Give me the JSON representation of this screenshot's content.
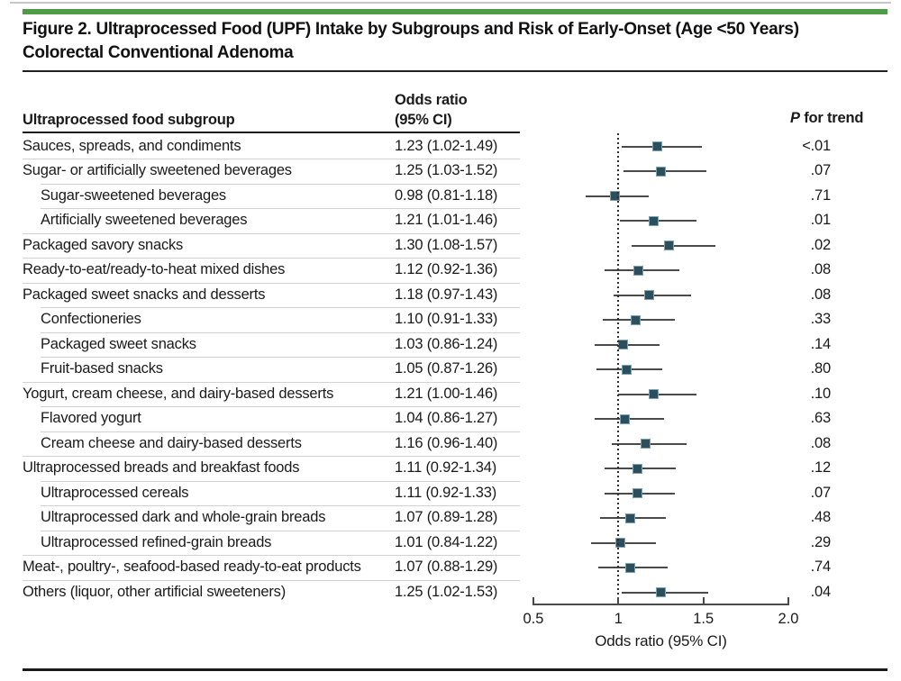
{
  "figure": {
    "title_line1": "Figure 2. Ultraprocessed Food (UPF) Intake by Subgroups and Risk of Early-Onset (Age <50 Years)",
    "title_line2": "Colorectal Conventional Adenoma"
  },
  "table": {
    "col_subgroup": "Ultraprocessed food subgroup",
    "col_or_line1": "Odds ratio",
    "col_or_line2": "(95% CI)",
    "col_p_italic": "P",
    "col_p_rest": " for trend"
  },
  "colors": {
    "accent_bar": "#4d9b44",
    "marker_fill": "#2d4f5d",
    "marker_border": "#7ea3b0",
    "ci_line": "#4a4a4a",
    "text": "#1a1a1a"
  },
  "chart_data": {
    "type": "forest",
    "title": "Figure 2. Ultraprocessed Food (UPF) Intake by Subgroups and Risk of Early-Onset (Age <50 Years) Colorectal Conventional Adenoma",
    "xlabel": "Odds ratio (95% CI)",
    "xlim": [
      0.5,
      2.0
    ],
    "x_tick_values": [
      0.5,
      1.0,
      1.5,
      2.0
    ],
    "x_ticks": [
      "0.5",
      "1",
      "1.5",
      "2.0"
    ],
    "reference_line": 1.0,
    "grid": false,
    "legend": false,
    "rows": [
      {
        "label": "Sauces, spreads, and condiments",
        "indent": 0,
        "or": 1.23,
        "lo": 1.02,
        "hi": 1.49,
        "or_text": "1.23 (1.02-1.49)",
        "p": "<.01"
      },
      {
        "label": "Sugar- or artificially sweetened beverages",
        "indent": 0,
        "or": 1.25,
        "lo": 1.03,
        "hi": 1.52,
        "or_text": "1.25 (1.03-1.52)",
        "p": ".07"
      },
      {
        "label": "Sugar-sweetened beverages",
        "indent": 1,
        "or": 0.98,
        "lo": 0.81,
        "hi": 1.18,
        "or_text": "0.98 (0.81-1.18)",
        "p": ".71"
      },
      {
        "label": "Artificially sweetened beverages",
        "indent": 1,
        "or": 1.21,
        "lo": 1.01,
        "hi": 1.46,
        "or_text": "1.21 (1.01-1.46)",
        "p": ".01"
      },
      {
        "label": "Packaged savory snacks",
        "indent": 0,
        "or": 1.3,
        "lo": 1.08,
        "hi": 1.57,
        "or_text": "1.30 (1.08-1.57)",
        "p": ".02"
      },
      {
        "label": "Ready-to-eat/ready-to-heat mixed dishes",
        "indent": 0,
        "or": 1.12,
        "lo": 0.92,
        "hi": 1.36,
        "or_text": "1.12 (0.92-1.36)",
        "p": ".08"
      },
      {
        "label": "Packaged sweet snacks and desserts",
        "indent": 0,
        "or": 1.18,
        "lo": 0.97,
        "hi": 1.43,
        "or_text": "1.18 (0.97-1.43)",
        "p": ".08"
      },
      {
        "label": "Confectioneries",
        "indent": 1,
        "or": 1.1,
        "lo": 0.91,
        "hi": 1.33,
        "or_text": "1.10 (0.91-1.33)",
        "p": ".33"
      },
      {
        "label": "Packaged sweet snacks",
        "indent": 1,
        "or": 1.03,
        "lo": 0.86,
        "hi": 1.24,
        "or_text": "1.03 (0.86-1.24)",
        "p": ".14"
      },
      {
        "label": "Fruit-based snacks",
        "indent": 1,
        "or": 1.05,
        "lo": 0.87,
        "hi": 1.26,
        "or_text": "1.05 (0.87-1.26)",
        "p": ".80"
      },
      {
        "label": "Yogurt, cream cheese, and dairy-based desserts",
        "indent": 0,
        "or": 1.21,
        "lo": 1.0,
        "hi": 1.46,
        "or_text": "1.21 (1.00-1.46)",
        "p": ".10"
      },
      {
        "label": "Flavored yogurt",
        "indent": 1,
        "or": 1.04,
        "lo": 0.86,
        "hi": 1.27,
        "or_text": "1.04 (0.86-1.27)",
        "p": ".63"
      },
      {
        "label": "Cream cheese and dairy-based desserts",
        "indent": 1,
        "or": 1.16,
        "lo": 0.96,
        "hi": 1.4,
        "or_text": "1.16 (0.96-1.40)",
        "p": ".08"
      },
      {
        "label": "Ultraprocessed breads and breakfast foods",
        "indent": 0,
        "or": 1.11,
        "lo": 0.92,
        "hi": 1.34,
        "or_text": "1.11 (0.92-1.34)",
        "p": ".12"
      },
      {
        "label": "Ultraprocessed cereals",
        "indent": 1,
        "or": 1.11,
        "lo": 0.92,
        "hi": 1.33,
        "or_text": "1.11 (0.92-1.33)",
        "p": ".07"
      },
      {
        "label": "Ultraprocessed dark and whole-grain breads",
        "indent": 1,
        "or": 1.07,
        "lo": 0.89,
        "hi": 1.28,
        "or_text": "1.07 (0.89-1.28)",
        "p": ".48"
      },
      {
        "label": "Ultraprocessed refined-grain breads",
        "indent": 1,
        "or": 1.01,
        "lo": 0.84,
        "hi": 1.22,
        "or_text": "1.01 (0.84-1.22)",
        "p": ".29"
      },
      {
        "label": "Meat-, poultry-, seafood-based ready-to-eat products",
        "indent": 0,
        "or": 1.07,
        "lo": 0.88,
        "hi": 1.29,
        "or_text": "1.07 (0.88-1.29)",
        "p": ".74"
      },
      {
        "label": "Others (liquor, other artificial sweeteners)",
        "indent": 0,
        "or": 1.25,
        "lo": 1.02,
        "hi": 1.53,
        "or_text": "1.25 (1.02-1.53)",
        "p": ".04"
      }
    ]
  }
}
